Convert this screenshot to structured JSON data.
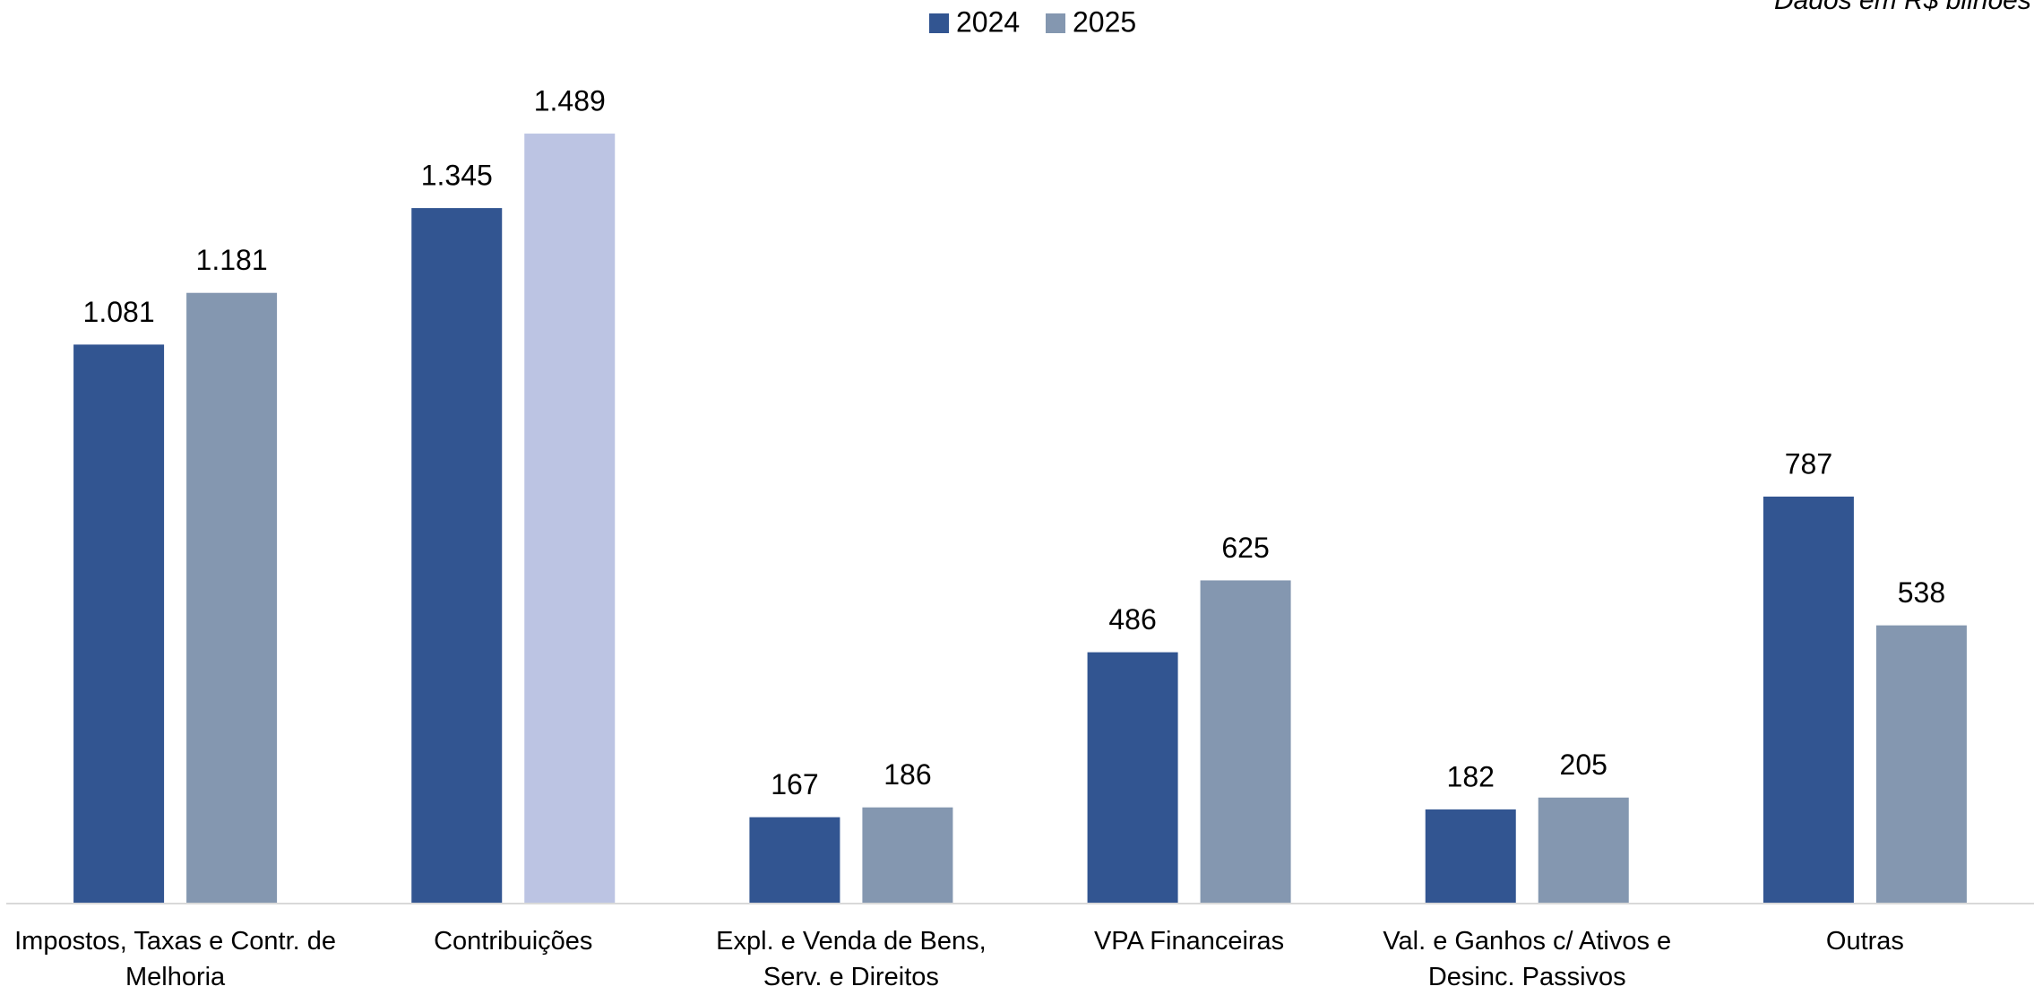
{
  "chart_data": {
    "type": "bar",
    "note": "Dados em R$ bilhões",
    "categories": [
      "Impostos, Taxas e Contr. de Melhoria",
      "Contribuições",
      "Expl. e Venda de Bens, Serv. e Direitos",
      "VPA  Financeiras",
      "Val. e Ganhos c/ Ativos e Desinc. Passivos",
      "Outras"
    ],
    "series": [
      {
        "name": "2024",
        "color": "#325591",
        "values": [
          1081,
          1345,
          167,
          486,
          182,
          787
        ],
        "value_labels": [
          "1.081",
          "1.345",
          "167",
          "486",
          "182",
          "787"
        ]
      },
      {
        "name": "2025",
        "color": "#8497b0",
        "point_colors": [
          "#8497b0",
          "#bcc4e3",
          "#8497b0",
          "#8497b0",
          "#8497b0",
          "#8497b0"
        ],
        "values": [
          1181,
          1489,
          186,
          625,
          205,
          538
        ],
        "value_labels": [
          "1.181",
          "1.489",
          "186",
          "625",
          "205",
          "538"
        ]
      }
    ],
    "ylim": [
      0,
      1600
    ],
    "legend": "top"
  }
}
